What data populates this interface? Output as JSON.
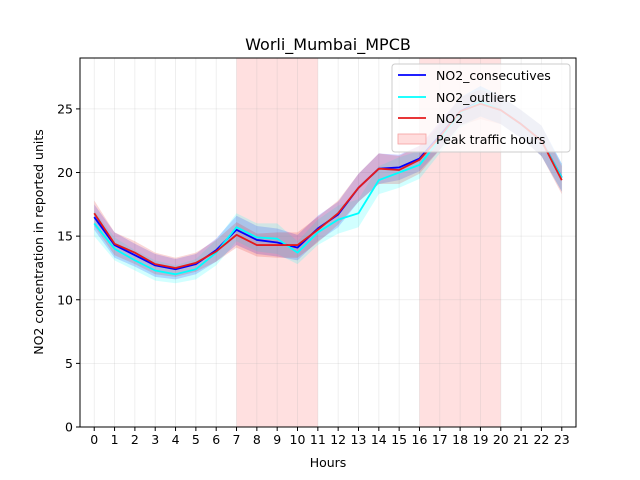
{
  "chart_data": {
    "type": "line",
    "title": "Worli_Mumbai_MPCB",
    "xlabel": "Hours",
    "ylabel": "NO2 concentration in reported units",
    "x": [
      0,
      1,
      2,
      3,
      4,
      5,
      6,
      7,
      8,
      9,
      10,
      11,
      12,
      13,
      14,
      15,
      16,
      17,
      18,
      19,
      20,
      21,
      22,
      23
    ],
    "x_ticks": [
      "0",
      "1",
      "2",
      "3",
      "4",
      "5",
      "6",
      "7",
      "8",
      "9",
      "10",
      "11",
      "12",
      "13",
      "14",
      "15",
      "16",
      "17",
      "18",
      "19",
      "20",
      "21",
      "22",
      "23"
    ],
    "y_ticks": [
      "0",
      "5",
      "10",
      "15",
      "20",
      "25"
    ],
    "xlim": [
      -0.7,
      23.7
    ],
    "ylim": [
      0,
      29
    ],
    "grid": true,
    "legend_position": "top-right",
    "series": [
      {
        "name": "NO2_consecutives",
        "color": "#0000ff",
        "values": [
          16.5,
          14.3,
          13.5,
          12.7,
          12.4,
          12.8,
          13.9,
          15.5,
          14.7,
          14.5,
          14.1,
          15.6,
          16.7,
          18.8,
          20.3,
          20.4,
          21.1,
          22.9,
          24.8,
          25.6,
          24.9,
          23.8,
          22.5,
          19.6
        ],
        "band_low": [
          15.5,
          13.3,
          12.6,
          11.8,
          11.6,
          12.0,
          13.0,
          14.3,
          13.6,
          13.4,
          13.1,
          14.6,
          15.7,
          17.7,
          19.1,
          19.4,
          20.1,
          21.8,
          23.7,
          24.4,
          23.8,
          22.7,
          21.3,
          18.5
        ],
        "band_high": [
          17.5,
          15.3,
          14.4,
          13.6,
          13.2,
          13.6,
          14.8,
          16.6,
          15.8,
          15.6,
          15.1,
          16.6,
          17.7,
          19.9,
          21.5,
          21.4,
          22.1,
          24.0,
          25.9,
          26.8,
          26.0,
          24.9,
          23.7,
          20.7
        ]
      },
      {
        "name": "NO2_outliers",
        "color": "#00ffff",
        "values": [
          16.0,
          14.0,
          13.1,
          12.3,
          12.0,
          12.4,
          13.7,
          15.7,
          14.9,
          14.8,
          13.7,
          15.3,
          16.3,
          16.8,
          19.4,
          20.0,
          20.6,
          22.6,
          24.7,
          25.6,
          24.9,
          23.8,
          22.5,
          19.6
        ],
        "band_low": [
          15.0,
          13.1,
          12.3,
          11.5,
          11.3,
          11.6,
          12.7,
          14.6,
          13.8,
          13.6,
          12.8,
          14.3,
          15.2,
          15.7,
          18.3,
          18.8,
          19.5,
          21.5,
          23.5,
          24.4,
          23.8,
          22.7,
          21.3,
          18.5
        ],
        "band_high": [
          17.0,
          14.9,
          13.9,
          13.1,
          12.7,
          13.2,
          14.7,
          16.8,
          16.0,
          16.0,
          14.6,
          16.3,
          17.4,
          17.9,
          20.5,
          21.2,
          21.7,
          23.7,
          25.9,
          26.8,
          26.0,
          24.9,
          23.7,
          20.7
        ]
      },
      {
        "name": "NO2",
        "color": "#e41a1c",
        "values": [
          16.8,
          14.4,
          13.7,
          12.8,
          12.5,
          12.9,
          13.8,
          15.1,
          14.3,
          14.3,
          14.3,
          15.5,
          16.8,
          18.8,
          20.3,
          20.2,
          21.0,
          22.8,
          24.8,
          25.4,
          24.9,
          23.8,
          22.5,
          19.4
        ],
        "band_low": [
          15.8,
          13.5,
          12.8,
          12.0,
          11.8,
          12.2,
          13.0,
          14.1,
          13.4,
          13.3,
          13.3,
          14.5,
          15.9,
          17.7,
          19.1,
          19.1,
          19.9,
          21.8,
          23.7,
          24.2,
          23.8,
          22.7,
          21.3,
          18.3
        ],
        "band_high": [
          17.8,
          15.3,
          14.6,
          13.7,
          13.3,
          13.7,
          14.7,
          16.1,
          15.2,
          15.3,
          15.3,
          16.5,
          17.8,
          19.9,
          21.5,
          21.3,
          22.1,
          23.8,
          25.9,
          26.5,
          26.0,
          24.9,
          23.7,
          20.5
        ]
      }
    ],
    "shaded_regions": [
      {
        "start": 7,
        "end": 11,
        "color": "#ffdddd"
      },
      {
        "start": 16,
        "end": 20,
        "color": "#ffdddd"
      }
    ],
    "shaded_regions_label": "Peak traffic hours"
  }
}
